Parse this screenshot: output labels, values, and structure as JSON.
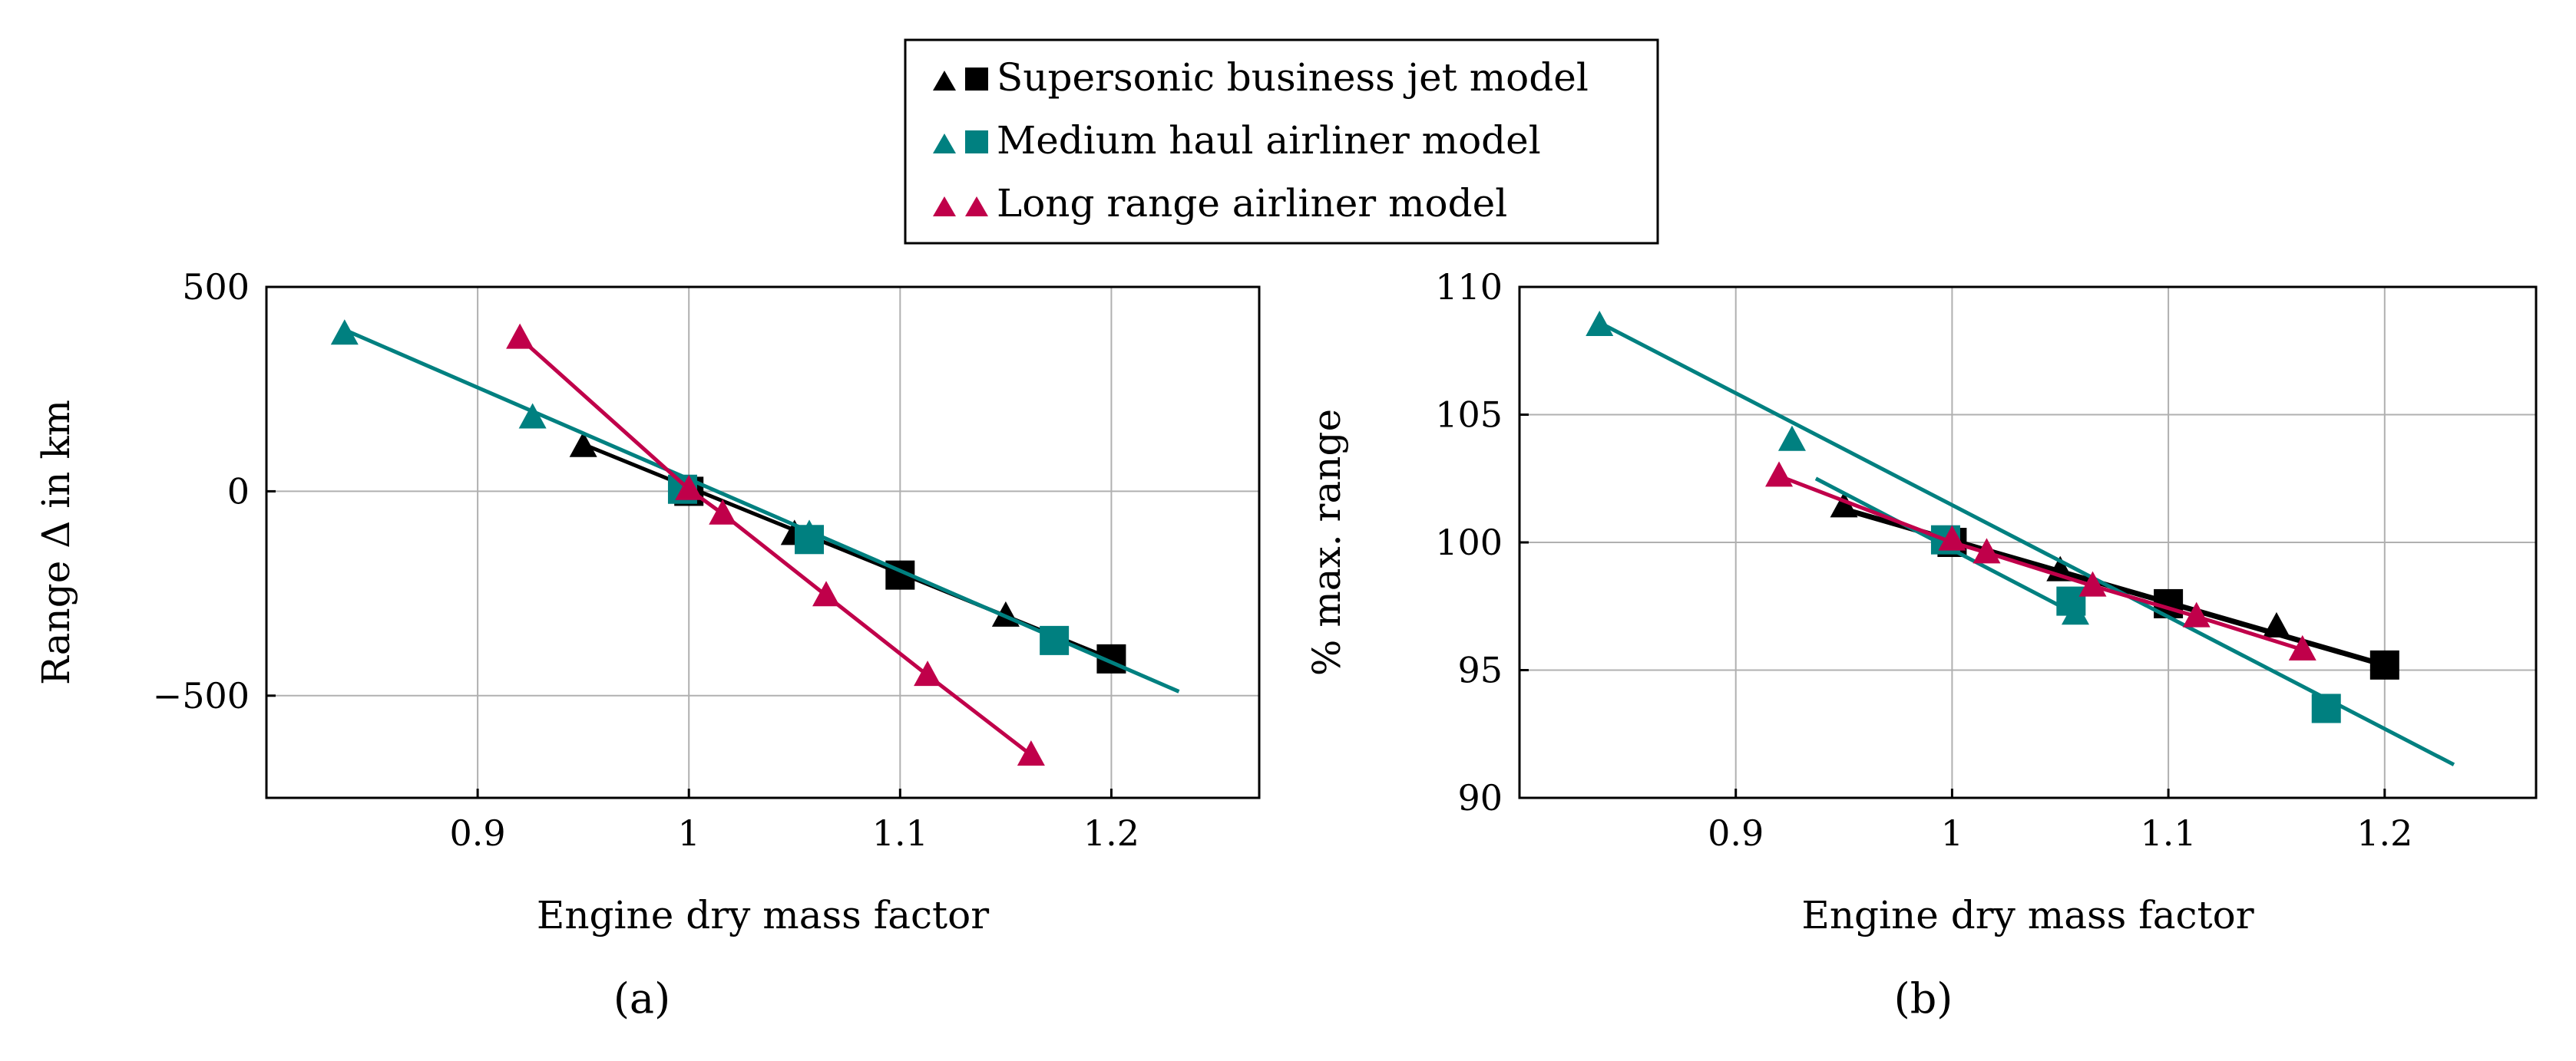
{
  "legend": [
    {
      "label": "Supersonic business jet model",
      "color": "#000000"
    },
    {
      "label": "Medium haul airliner model",
      "color": "#008080"
    },
    {
      "label": "Long range airliner model",
      "color": "#c0004a"
    }
  ],
  "chart_data": [
    {
      "type": "line",
      "caption": "(a)",
      "xlabel": "Engine dry mass factor",
      "ylabel": "Range Δ in km",
      "xlim": [
        0.8,
        1.27
      ],
      "ylim": [
        -750,
        500
      ],
      "xticks": [
        0.9,
        1,
        1.1,
        1.2
      ],
      "xtick_labels": [
        "0.9",
        "1",
        "1.1",
        "1.2"
      ],
      "yticks": [
        -500,
        0,
        500
      ],
      "ytick_labels": [
        "−500",
        "0",
        "500"
      ],
      "grid": true,
      "series": [
        {
          "name": "Supersonic business jet model",
          "color": "#000000",
          "width": 5,
          "line": {
            "x": [
              0.95,
              1.2
            ],
            "y": [
              115,
              -410
            ]
          },
          "triangles": {
            "x": [
              0.95,
              1.05,
              1.15
            ],
            "y": [
              110,
              -105,
              -305
            ]
          },
          "squares": {
            "x": [
              1.0,
              1.1,
              1.2
            ],
            "y": [
              0,
              -205,
              -410
            ]
          }
        },
        {
          "name": "Medium haul airliner model",
          "color": "#008080",
          "width": 5,
          "line": {
            "x": [
              0.837,
              1.232
            ],
            "y": [
              395,
              -490
            ]
          },
          "triangles": {
            "x": [
              0.837,
              0.926,
              1.057
            ],
            "y": [
              385,
              180,
              -105
            ]
          },
          "squares": {
            "x": [
              0.997,
              1.057,
              1.173
            ],
            "y": [
              5,
              -118,
              -365
            ]
          }
        },
        {
          "name": "Long range airliner model",
          "color": "#c0004a",
          "width": 5,
          "line": {
            "x": [
              0.92,
              1.0,
              1.016,
              1.065,
              1.113,
              1.162
            ],
            "y": [
              375,
              5,
              -55,
              -255,
              -450,
              -645
            ]
          },
          "triangles": {
            "x": [
              0.92,
              1.0,
              1.016,
              1.065,
              1.113,
              1.162
            ],
            "y": [
              375,
              5,
              -55,
              -255,
              -450,
              -645
            ]
          },
          "squares": {
            "x": [],
            "y": []
          }
        }
      ]
    },
    {
      "type": "line",
      "caption": "(b)",
      "xlabel": "Engine dry mass factor",
      "ylabel": "% max. range",
      "xlim": [
        0.8,
        1.27
      ],
      "ylim": [
        90,
        110
      ],
      "xticks": [
        0.9,
        1,
        1.1,
        1.2
      ],
      "xtick_labels": [
        "0.9",
        "1",
        "1.1",
        "1.2"
      ],
      "yticks": [
        90,
        95,
        100,
        105,
        110
      ],
      "ytick_labels": [
        "90",
        "95",
        "100",
        "105",
        "110"
      ],
      "grid": true,
      "series": [
        {
          "name": "Supersonic business jet model",
          "color": "#000000",
          "width": 7,
          "line": {
            "x": [
              0.95,
              1.2
            ],
            "y": [
              101.3,
              95.2
            ]
          },
          "triangles": {
            "x": [
              0.95,
              1.05,
              1.15
            ],
            "y": [
              101.4,
              98.9,
              96.7
            ]
          },
          "squares": {
            "x": [
              1.0,
              1.1,
              1.2
            ],
            "y": [
              100.0,
              97.6,
              95.2
            ]
          }
        },
        {
          "name": "Medium haul airliner model",
          "color": "#008080",
          "width": 5,
          "line": {
            "x": [
              0.837,
              1.232
            ],
            "y": [
              108.6,
              91.3
            ]
          },
          "extra_line": {
            "x": [
              0.937,
              1.057
            ],
            "y": [
              102.5,
              97.2
            ]
          },
          "triangles": {
            "x": [
              0.837,
              0.926,
              1.057
            ],
            "y": [
              108.5,
              104.0,
              97.2
            ]
          },
          "squares": {
            "x": [
              0.997,
              1.055,
              1.173
            ],
            "y": [
              100.1,
              97.7,
              93.5
            ]
          }
        },
        {
          "name": "Long range airliner model",
          "color": "#c0004a",
          "width": 5,
          "line": {
            "x": [
              0.92,
              1.0,
              1.016,
              1.065,
              1.113,
              1.162
            ],
            "y": [
              102.6,
              100.0,
              99.6,
              98.3,
              97.1,
              95.8
            ]
          },
          "triangles": {
            "x": [
              0.92,
              1.0,
              1.016,
              1.065,
              1.113,
              1.162
            ],
            "y": [
              102.6,
              100.1,
              99.6,
              98.3,
              97.1,
              95.8
            ]
          },
          "squares": {
            "x": [],
            "y": []
          }
        }
      ]
    }
  ]
}
